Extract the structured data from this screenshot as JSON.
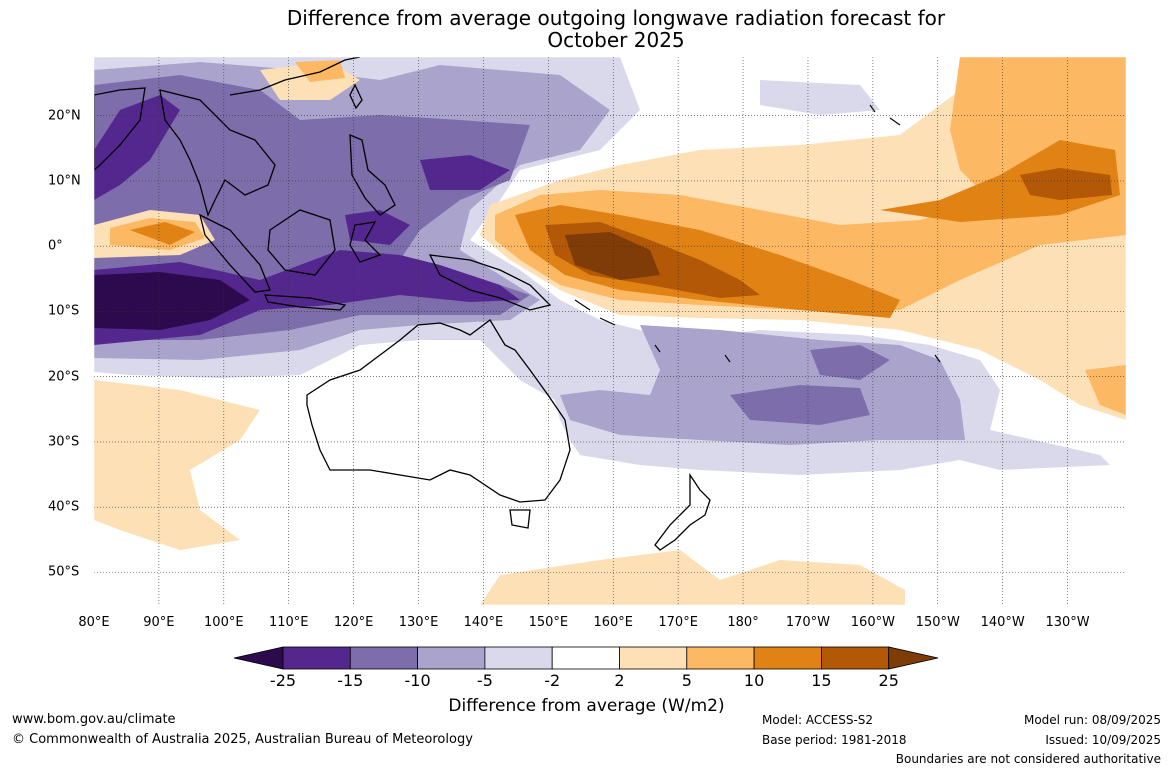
{
  "title_line1": "Difference from average outgoing longwave radiation forecast for",
  "title_line2": "October 2025",
  "map": {
    "extent": {
      "lon_min": 80,
      "lon_max": 239,
      "lat_min": -55,
      "lat_max": 29
    },
    "lon_ticks": [
      {
        "deg": 80,
        "label": "80°E"
      },
      {
        "deg": 90,
        "label": "90°E"
      },
      {
        "deg": 100,
        "label": "100°E"
      },
      {
        "deg": 110,
        "label": "110°E"
      },
      {
        "deg": 120,
        "label": "120°E"
      },
      {
        "deg": 130,
        "label": "130°E"
      },
      {
        "deg": 140,
        "label": "140°E"
      },
      {
        "deg": 150,
        "label": "150°E"
      },
      {
        "deg": 160,
        "label": "160°E"
      },
      {
        "deg": 170,
        "label": "170°E"
      },
      {
        "deg": 180,
        "label": "180°"
      },
      {
        "deg": 190,
        "label": "170°W"
      },
      {
        "deg": 200,
        "label": "160°W"
      },
      {
        "deg": 210,
        "label": "150°W"
      },
      {
        "deg": 220,
        "label": "140°W"
      },
      {
        "deg": 230,
        "label": "130°W"
      }
    ],
    "lat_ticks": [
      {
        "deg": 20,
        "label": "20°N"
      },
      {
        "deg": 10,
        "label": "10°N"
      },
      {
        "deg": 0,
        "label": "0°"
      },
      {
        "deg": -10,
        "label": "10°S"
      },
      {
        "deg": -20,
        "label": "20°S"
      },
      {
        "deg": -30,
        "label": "30°S"
      },
      {
        "deg": -40,
        "label": "40°S"
      },
      {
        "deg": -50,
        "label": "50°S"
      }
    ]
  },
  "colorbar": {
    "ticks": [
      "-25",
      "-15",
      "-10",
      "-5",
      "-2",
      "2",
      "5",
      "10",
      "15",
      "25"
    ],
    "colors": [
      "#2d0a4e",
      "#54278f",
      "#7d6eab",
      "#aaa4cc",
      "#d9d9eb",
      "#ffffff",
      "#fee0b6",
      "#fdb863",
      "#e08214",
      "#b35806",
      "#7f3b08"
    ],
    "label": "Difference from average (W/m2)"
  },
  "footer": {
    "website": "www.bom.gov.au/climate",
    "copyright": "© Commonwealth of Australia 2025, Australian Bureau of Meteorology",
    "model": "Model: ACCESS-S2",
    "base_period": "Base period: 1981-2018",
    "model_run": "Model run: 08/09/2025",
    "issued": "Issued: 10/09/2025",
    "disclaimer": "Boundaries are not considered authoritative"
  }
}
